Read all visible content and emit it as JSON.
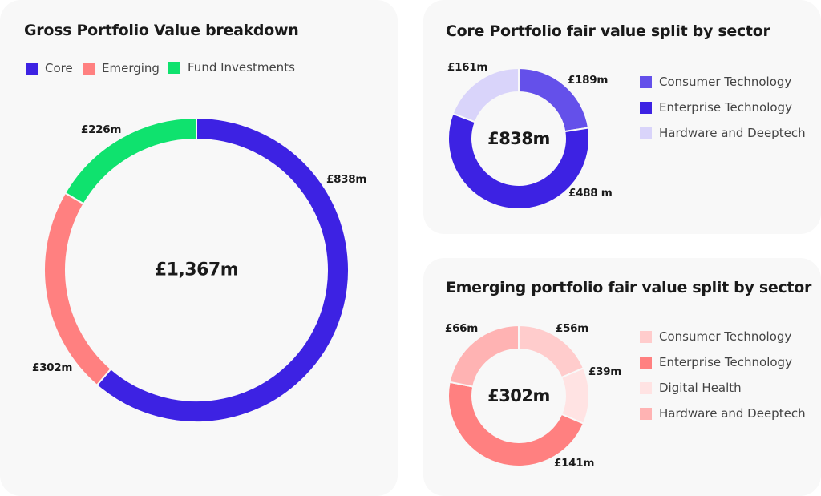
{
  "chart_data": [
    {
      "type": "pie",
      "variant": "donut",
      "title": "Gross Portfolio Value breakdown",
      "center_label": "£1,367m",
      "legend_placement": "top-left",
      "slices": [
        {
          "name": "Core",
          "value": 838,
          "label": "£838m",
          "color": "#3d22e3"
        },
        {
          "name": "Emerging",
          "value": 302,
          "label": "£302m",
          "color": "#ff8080"
        },
        {
          "name": "Fund Investments",
          "value": 226,
          "label": "£226m",
          "color": "#0fe26e"
        }
      ]
    },
    {
      "type": "pie",
      "variant": "donut",
      "title": "Core Portfolio fair value split by sector",
      "center_label": "£838m",
      "legend_placement": "right",
      "slices": [
        {
          "name": "Consumer Technology",
          "value": 189,
          "label": "£189m",
          "color": "#6450ea"
        },
        {
          "name": "Enterprise Technology",
          "value": 488,
          "label": "£488 m",
          "color": "#3d22e3"
        },
        {
          "name": "Hardware and Deeptech",
          "value": 161,
          "label": "£161m",
          "color": "#d9d4fa"
        }
      ]
    },
    {
      "type": "pie",
      "variant": "donut",
      "title": "Emerging portfolio fair value split by sector",
      "center_label": "£302m",
      "legend_placement": "right",
      "slices": [
        {
          "name": "Consumer Technology",
          "value": 56,
          "label": "£56m",
          "color": "#ffcccc"
        },
        {
          "name": "Digital Health",
          "value": 39,
          "label": "£39m",
          "color": "#ffe3e3"
        },
        {
          "name": "Enterprise Technology",
          "value": 141,
          "label": "£141m",
          "color": "#ff8080"
        },
        {
          "name": "Hardware and Deeptech",
          "value": 66,
          "label": "£66m",
          "color": "#ffb3b3"
        }
      ],
      "legend_order": [
        "Consumer Technology",
        "Enterprise Technology",
        "Digital Health",
        "Hardware and Deeptech"
      ]
    }
  ]
}
